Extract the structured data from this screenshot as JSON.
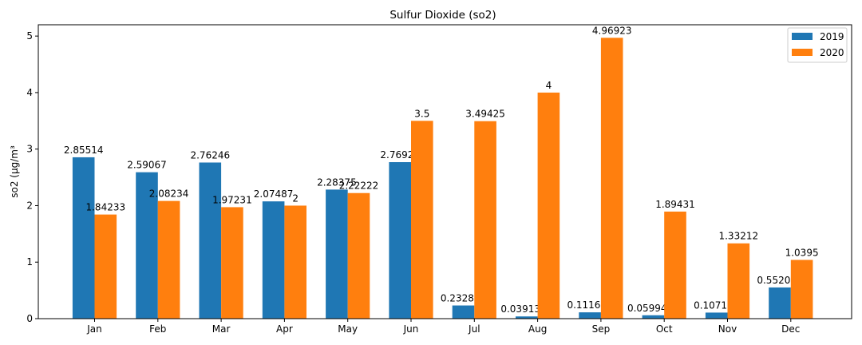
{
  "chart_data": {
    "type": "bar",
    "title": "Sulfur Dioxide (so2)",
    "xlabel": "",
    "ylabel": "so2 (µg/m³",
    "ylim": [
      0,
      5.2
    ],
    "yticks": [
      0,
      1,
      2,
      3,
      4,
      5
    ],
    "categories": [
      "Jan",
      "Feb",
      "Mar",
      "Apr",
      "May",
      "Jun",
      "Jul",
      "Aug",
      "Sep",
      "Oct",
      "Nov",
      "Dec"
    ],
    "legend_position": "top-right",
    "grid": false,
    "series": [
      {
        "name": "2019",
        "color": "#1f77b4",
        "values": [
          2.85514,
          2.59067,
          2.76246,
          2.07487,
          2.28375,
          2.76923,
          0.232855,
          0.0391363,
          0.111699,
          0.0599455,
          0.107193,
          0.552055
        ],
        "labels": [
          "2.85514",
          "2.59067",
          "2.76246",
          "2.07487",
          "2.28375",
          "2.76923",
          "0.232855",
          "0.0391363",
          "0.111699",
          "0.0599455",
          "0.107193",
          "0.552055"
        ]
      },
      {
        "name": "2020",
        "color": "#ff7f0e",
        "values": [
          1.84233,
          2.08234,
          1.97231,
          2,
          2.22222,
          3.5,
          3.49425,
          4,
          4.96923,
          1.89431,
          1.33212,
          1.0395
        ],
        "labels": [
          "1.84233",
          "2.08234",
          "1.97231",
          "2",
          "2.22222",
          "3.5",
          "3.49425",
          "4",
          "4.96923",
          "1.89431",
          "1.33212",
          "1.0395"
        ]
      }
    ]
  }
}
